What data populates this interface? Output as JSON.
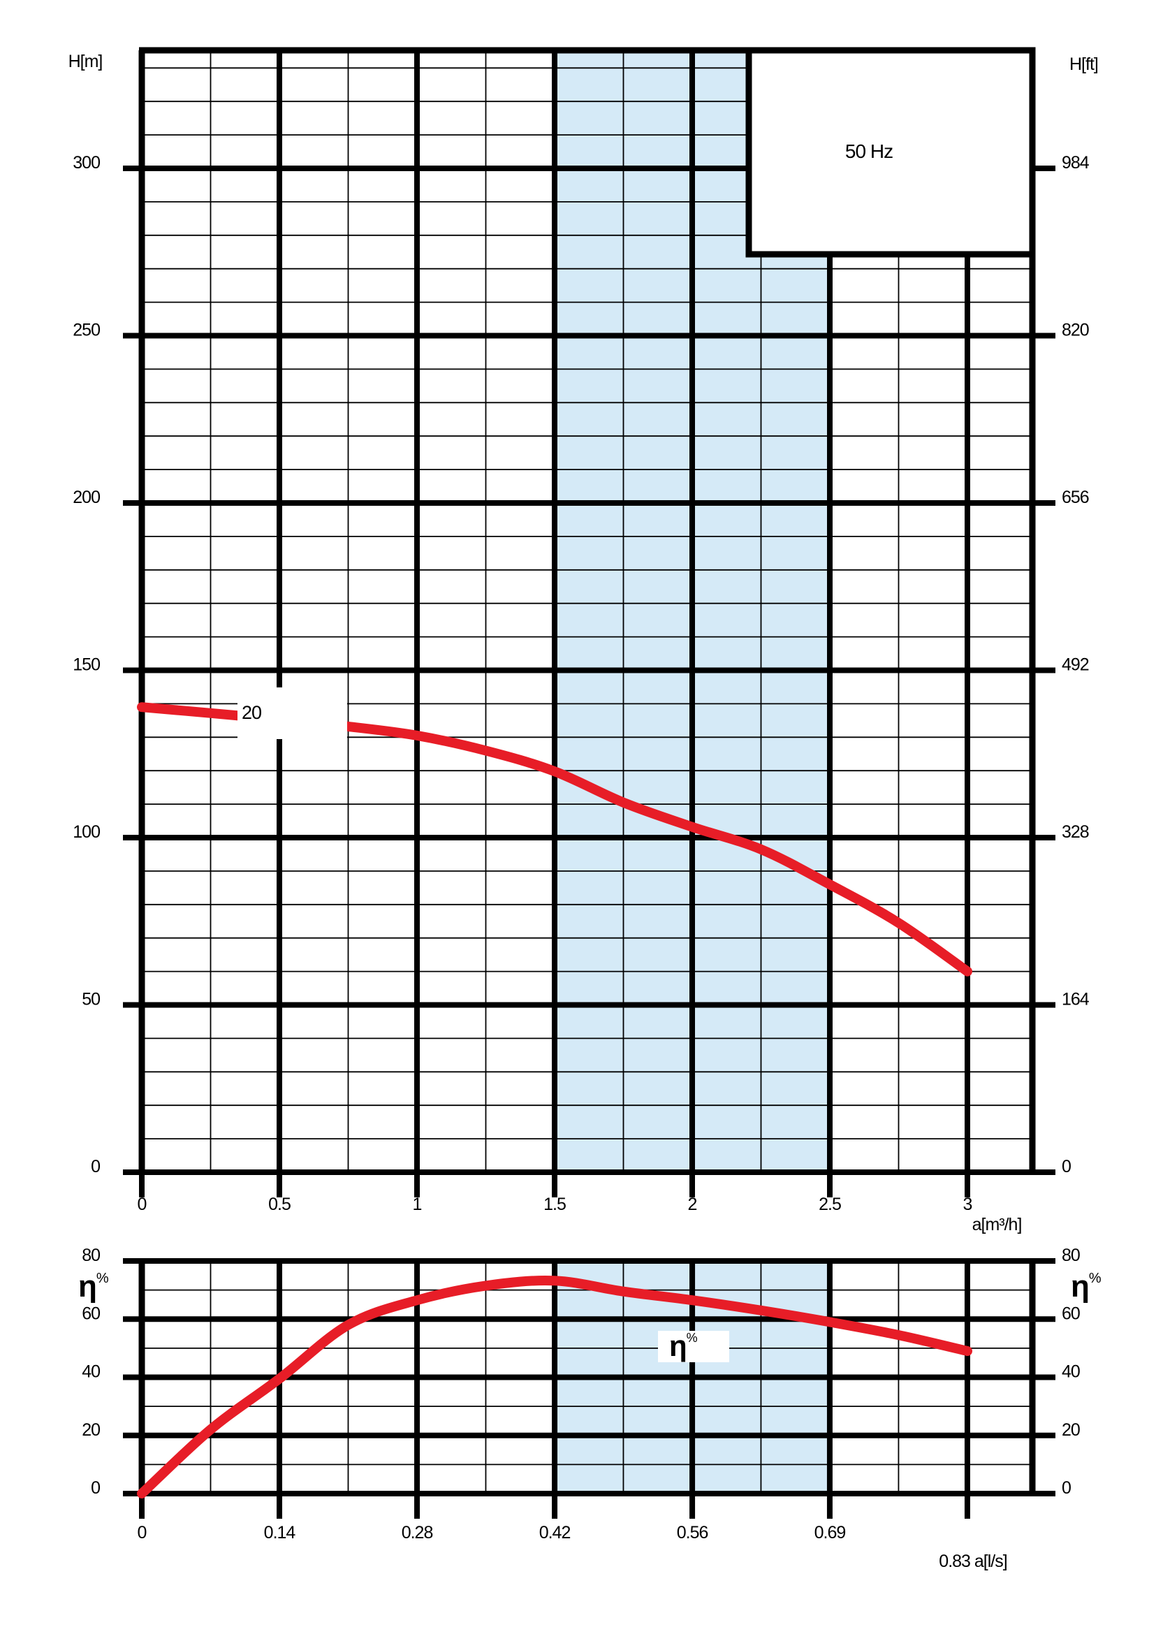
{
  "colors": {
    "curve_red": "#e71d27",
    "duty_band_blue": "#d5eaf7",
    "grid_black": "#000000",
    "background": "#ffffff"
  },
  "annotations": {
    "frequency_label": "50 Hz",
    "pump_curve_label": "20",
    "eta_symbol": "η",
    "eta_sup": "%"
  },
  "chart_data": [
    {
      "id": "head-curve-chart",
      "type": "line",
      "title": "",
      "y_axis_left": {
        "title": "H[m]",
        "tick_values": [
          300,
          250,
          200,
          150,
          100,
          50,
          0
        ],
        "tick_labels": [
          "300",
          "250",
          "200",
          "150",
          "100",
          "50",
          "0"
        ]
      },
      "y_axis_right": {
        "title": "H[ft]",
        "tick_labels": [
          "984",
          "820",
          "656",
          "492",
          "328",
          "164",
          "0"
        ]
      },
      "x_axis": {
        "title": "a[m³/h]",
        "tick_values": [
          0,
          0.5,
          1,
          1.5,
          2,
          2.5,
          3
        ],
        "tick_labels": [
          "0",
          "0.5",
          "1",
          "1.5",
          "2",
          "2.5",
          "3"
        ],
        "minor_step": 0.25
      },
      "xlim": [
        0,
        3.236
      ],
      "ylim": [
        0,
        335
      ],
      "y_minor_step": 10,
      "y_major_step": 50,
      "grid": true,
      "legend_position": "top-right",
      "duty_band": {
        "x_from": 1.5,
        "x_to": 2.5
      },
      "series": [
        {
          "name": "20",
          "points": [
            [
              0,
              139
            ],
            [
              0.25,
              137.2
            ],
            [
              0.5,
              135.3
            ],
            [
              0.75,
              133.2
            ],
            [
              1,
              130.5
            ],
            [
              1.25,
              126
            ],
            [
              1.5,
              119.8
            ],
            [
              1.75,
              110.5
            ],
            [
              2,
              103.2
            ],
            [
              2.25,
              96.5
            ],
            [
              2.5,
              86
            ],
            [
              2.75,
              74.5
            ],
            [
              3,
              60
            ]
          ]
        }
      ]
    },
    {
      "id": "efficiency-chart",
      "type": "line",
      "title": "",
      "y_axis_left": {
        "title": "η%",
        "tick_values": [
          80,
          60,
          40,
          20,
          0
        ],
        "tick_labels": [
          "80",
          "60",
          "40",
          "20",
          "0"
        ]
      },
      "y_axis_right": {
        "title": "η%",
        "tick_labels": [
          "80",
          "60",
          "40",
          "20",
          "0"
        ]
      },
      "x_axis": {
        "unit_title": "a[l/s]",
        "tick_values": [
          0,
          0.1389,
          0.2778,
          0.4167,
          0.5556,
          0.6944,
          0.8333
        ],
        "tick_labels": [
          "0",
          "0.14",
          "0.28",
          "0.42",
          "0.56",
          "0.69"
        ],
        "end_tick_label": "0.83",
        "minor_step": 0.06944
      },
      "xlim": [
        0,
        0.899
      ],
      "ylim": [
        0,
        80
      ],
      "y_minor_step": 10,
      "y_major_step": 20,
      "grid": true,
      "duty_band": {
        "x_from": 0.4167,
        "x_to": 0.6944
      },
      "series": [
        {
          "name": "η%",
          "points": [
            [
              0,
              0
            ],
            [
              0.0694,
              22
            ],
            [
              0.1389,
              39.5
            ],
            [
              0.2083,
              58
            ],
            [
              0.2778,
              66.5
            ],
            [
              0.3472,
              71.5
            ],
            [
              0.4167,
              73.2
            ],
            [
              0.4861,
              69.5
            ],
            [
              0.5556,
              66.5
            ],
            [
              0.625,
              63
            ],
            [
              0.6944,
              59
            ],
            [
              0.7639,
              54.5
            ],
            [
              0.8333,
              49
            ]
          ]
        }
      ]
    }
  ]
}
